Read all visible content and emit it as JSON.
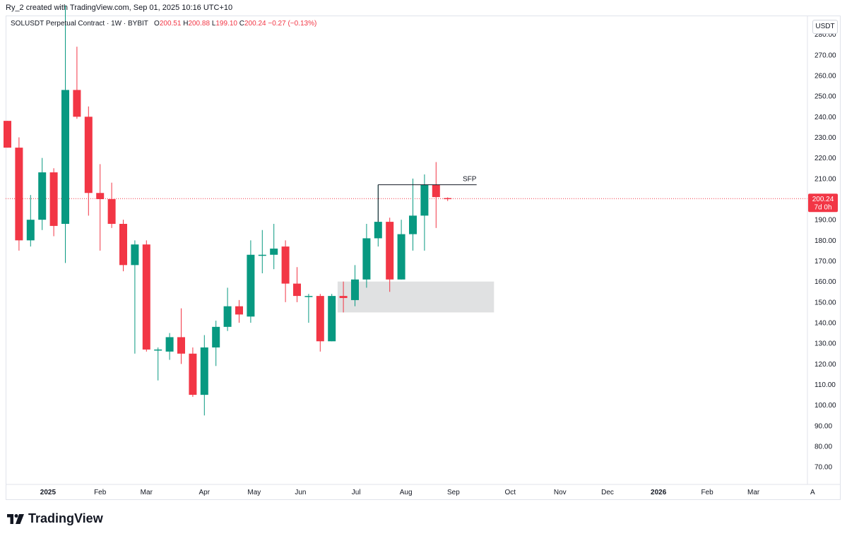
{
  "header": {
    "created_by": "Ry_2 created with TradingView.com, Sep 01, 2025 10:16 UTC+10"
  },
  "legend": {
    "symbol": "SOLUSDT Perpetual Contract · 1W · BYBIT",
    "o_label": "O",
    "o_value": "200.51",
    "h_label": "H",
    "h_value": "200.88",
    "l_label": "L",
    "l_value": "199.10",
    "c_label": "C",
    "c_value": "200.24",
    "change": "−0.27 (−0.13%)"
  },
  "currency": "USDT",
  "price_tag": {
    "price": "200.24",
    "countdown": "7d 0h"
  },
  "annotation": {
    "label": "SFP",
    "level": 207
  },
  "colors": {
    "up": "#089981",
    "down": "#f23645",
    "zone": "#e0e1e2",
    "axis_text": "#131722"
  },
  "brand": {
    "name": "TradingView"
  },
  "chart_data": {
    "type": "candlestick",
    "title": "SOLUSDT Perpetual Contract · 1W · BYBIT",
    "ylim": [
      60,
      290
    ],
    "y_ticks": [
      "70.00",
      "80.00",
      "90.00",
      "100.00",
      "110.00",
      "120.00",
      "130.00",
      "140.00",
      "150.00",
      "160.00",
      "170.00",
      "180.00",
      "190.00",
      "200.00",
      "210.00",
      "220.00",
      "230.00",
      "240.00",
      "250.00",
      "260.00",
      "270.00",
      "280.00"
    ],
    "x_ticks": [
      "2025",
      "Feb",
      "Mar",
      "Apr",
      "May",
      "Jun",
      "Jul",
      "Aug",
      "Sep",
      "Oct",
      "Nov",
      "Dec",
      "2026",
      "Feb",
      "Mar",
      "A"
    ],
    "x_tick_weeks": [
      3.5,
      8.0,
      12.0,
      17.0,
      21.3,
      25.3,
      30.1,
      34.4,
      38.5,
      43.4,
      47.7,
      51.8,
      56.2,
      60.4,
      64.4,
      69.5
    ],
    "bold_ticks": [
      "2025",
      "2026"
    ],
    "candles": [
      {
        "o": 238,
        "h": 238,
        "l": 225,
        "c": 225
      },
      {
        "o": 225,
        "h": 230,
        "l": 175,
        "c": 180
      },
      {
        "o": 180,
        "h": 202,
        "l": 177,
        "c": 190
      },
      {
        "o": 190,
        "h": 220,
        "l": 185,
        "c": 213
      },
      {
        "o": 213,
        "h": 215,
        "l": 182,
        "c": 187
      },
      {
        "o": 188,
        "h": 294,
        "l": 169,
        "c": 253
      },
      {
        "o": 253,
        "h": 274,
        "l": 239,
        "c": 240
      },
      {
        "o": 240,
        "h": 245,
        "l": 192,
        "c": 203
      },
      {
        "o": 203,
        "h": 217,
        "l": 175,
        "c": 200
      },
      {
        "o": 200,
        "h": 208,
        "l": 186,
        "c": 188
      },
      {
        "o": 188,
        "h": 190,
        "l": 165,
        "c": 168
      },
      {
        "o": 168,
        "h": 180,
        "l": 125,
        "c": 178
      },
      {
        "o": 178,
        "h": 180,
        "l": 126,
        "c": 127
      },
      {
        "o": 127,
        "h": 128,
        "l": 112,
        "c": 127
      },
      {
        "o": 126,
        "h": 135,
        "l": 122,
        "c": 133
      },
      {
        "o": 133,
        "h": 147,
        "l": 120,
        "c": 125
      },
      {
        "o": 125,
        "h": 128,
        "l": 104,
        "c": 105
      },
      {
        "o": 105,
        "h": 134,
        "l": 95,
        "c": 128
      },
      {
        "o": 128,
        "h": 141,
        "l": 119,
        "c": 138
      },
      {
        "o": 138,
        "h": 157,
        "l": 136,
        "c": 148
      },
      {
        "o": 148,
        "h": 151,
        "l": 140,
        "c": 144
      },
      {
        "o": 143,
        "h": 180,
        "l": 140,
        "c": 173
      },
      {
        "o": 173,
        "h": 185,
        "l": 164,
        "c": 173
      },
      {
        "o": 173,
        "h": 188,
        "l": 166,
        "c": 176
      },
      {
        "o": 177,
        "h": 180,
        "l": 150,
        "c": 159
      },
      {
        "o": 159,
        "h": 167,
        "l": 150,
        "c": 153
      },
      {
        "o": 153,
        "h": 154,
        "l": 140,
        "c": 153
      },
      {
        "o": 153,
        "h": 154,
        "l": 126,
        "c": 131
      },
      {
        "o": 131,
        "h": 154,
        "l": 131,
        "c": 153
      },
      {
        "o": 153,
        "h": 160,
        "l": 145,
        "c": 152
      },
      {
        "o": 151,
        "h": 168,
        "l": 148,
        "c": 161
      },
      {
        "o": 161,
        "h": 188,
        "l": 157,
        "c": 181
      },
      {
        "o": 181,
        "h": 207,
        "l": 177,
        "c": 189
      },
      {
        "o": 189,
        "h": 191,
        "l": 155,
        "c": 161
      },
      {
        "o": 161,
        "h": 190,
        "l": 161,
        "c": 183
      },
      {
        "o": 183,
        "h": 210,
        "l": 175,
        "c": 192
      },
      {
        "o": 192,
        "h": 212,
        "l": 175,
        "c": 207
      },
      {
        "o": 207,
        "h": 218,
        "l": 186,
        "c": 201
      },
      {
        "o": 200.51,
        "h": 200.88,
        "l": 199.1,
        "c": 200.24
      }
    ],
    "zone": {
      "y_low": 145,
      "y_high": 160,
      "from_week": 28.5,
      "to_week": 42
    },
    "current_price": 200.24
  }
}
